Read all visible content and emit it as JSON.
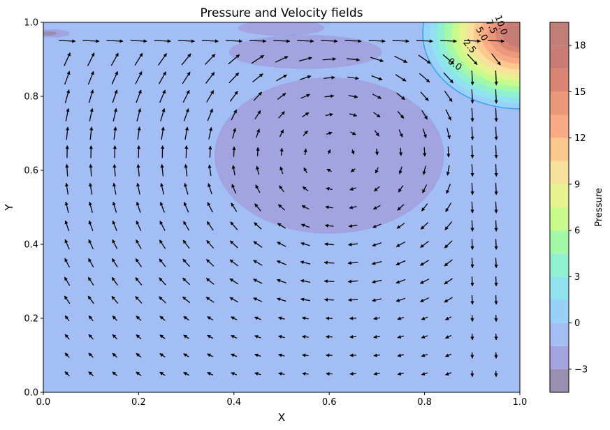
{
  "chart_data": {
    "type": "contour-quiver",
    "title": "Pressure and Velocity fields",
    "xlabel": "X",
    "ylabel": "Y",
    "xlim": [
      0.0,
      1.0
    ],
    "ylim": [
      0.0,
      1.0
    ],
    "x_ticks": [
      "0.0",
      "0.2",
      "0.4",
      "0.6",
      "0.8",
      "1.0"
    ],
    "y_ticks": [
      "0.0",
      "0.2",
      "0.4",
      "0.6",
      "0.8",
      "1.0"
    ],
    "grid": false,
    "colorbar": {
      "label": "Pressure",
      "range": [
        -4.5,
        19.5
      ],
      "ticks": [
        "−3",
        "0",
        "3",
        "6",
        "9",
        "12",
        "15",
        "18"
      ],
      "tick_values": [
        -3,
        0,
        3,
        6,
        9,
        12,
        15,
        18
      ],
      "levels": [
        -4.5,
        -3,
        -1.5,
        0,
        1.5,
        3,
        4.5,
        6,
        7.5,
        9,
        10.5,
        12,
        13.5,
        15,
        16.5,
        18,
        19.5
      ],
      "colors": [
        "#998fb0",
        "#a3a3e0",
        "#a2bef4",
        "#98d1f9",
        "#8fe2ee",
        "#8ff1cf",
        "#a5f8a7",
        "#c9fb8c",
        "#e6f38f",
        "#f8e19c",
        "#fdc88d",
        "#f8ab85",
        "#ec987a",
        "#da8474",
        "#c87c74",
        "#c07e76"
      ]
    },
    "contour_labels": [
      "0.0",
      "2.5",
      "5.0",
      "7.5",
      "10.0"
    ],
    "low_pressure_region": {
      "center": [
        0.6,
        0.64
      ],
      "radius_x": 0.24,
      "radius_y": 0.21,
      "pressure_below": -1.5
    },
    "high_pressure_region": {
      "center": [
        1.0,
        0.97
      ],
      "pressure_max": 19.5
    },
    "vortex_center": [
      0.62,
      0.64
    ]
  }
}
